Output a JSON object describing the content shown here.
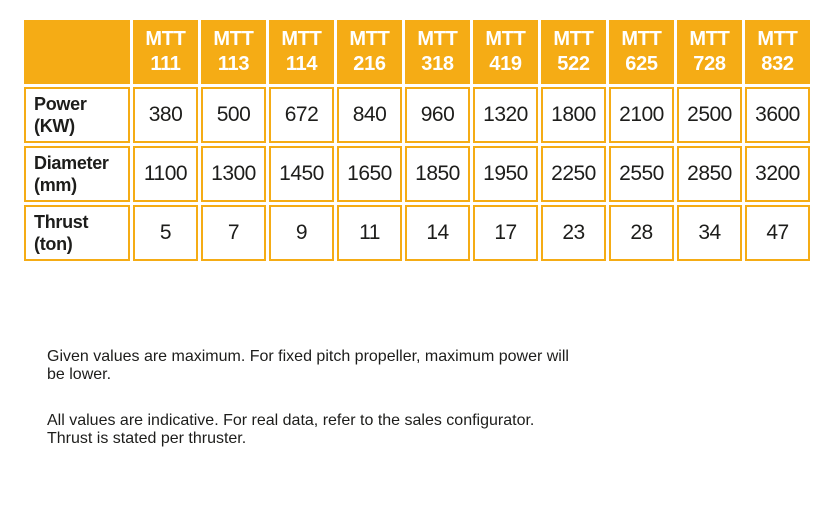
{
  "colors": {
    "accent": "#F5AC15",
    "header_text": "#FFFFFF",
    "body_text": "#1D1D1B",
    "background": "#FFFFFF"
  },
  "table": {
    "corner": "",
    "columns": [
      "MTT 111",
      "MTT 113",
      "MTT 114",
      "MTT 216",
      "MTT 318",
      "MTT 419",
      "MTT 522",
      "MTT 625",
      "MTT 728",
      "MTT 832"
    ],
    "rows": [
      {
        "label": "Power (KW)",
        "values": [
          "380",
          "500",
          "672",
          "840",
          "960",
          "1320",
          "1800",
          "2100",
          "2500",
          "3600"
        ]
      },
      {
        "label": "Diameter (mm)",
        "values": [
          "1100",
          "1300",
          "1450",
          "1650",
          "1850",
          "1950",
          "2250",
          "2550",
          "2850",
          "3200"
        ]
      },
      {
        "label": "Thrust (ton)",
        "values": [
          "5",
          "7",
          "9",
          "11",
          "14",
          "17",
          "23",
          "28",
          "34",
          "47"
        ]
      }
    ]
  },
  "notes": [
    {
      "lines": [
        "Given values are maximum. For fixed pitch propeller, maximum power will",
        "be lower."
      ]
    },
    {
      "lines": [
        "All values are indicative. For real data, refer to the sales configurator.",
        "Thrust is stated per thruster."
      ]
    }
  ]
}
